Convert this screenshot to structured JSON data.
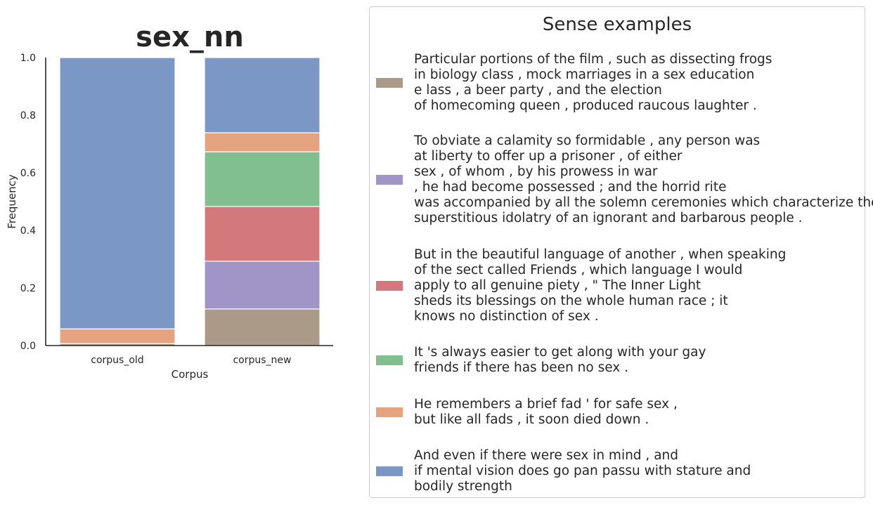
{
  "chart_data": {
    "type": "bar",
    "stacked": true,
    "title": "sex_nn",
    "xlabel": "Corpus",
    "ylabel": "Frequency",
    "ylim": [
      0,
      1.0
    ],
    "yticks": [
      "0.0",
      "0.2",
      "0.4",
      "0.6",
      "0.8",
      "1.0"
    ],
    "categories": [
      "corpus_old",
      "corpus_new"
    ],
    "series": [
      {
        "name": "Particular portions of the film , such as dissecting frogs in biology class , mock marriages in a sex education e lass , a beer party , and the election of homecoming queen , produced raucous laughter .",
        "color": "#ab9a87",
        "values": [
          0.007,
          0.127
        ]
      },
      {
        "name": "To obviate a calamity so formidable , any person was at liberty to offer up a prisoner , of either sex , of whom , by his prowess in war , he had become possessed ; and the horrid rite was accompanied by all the solemn ceremonies which characterize the superstitious idolatry of an ignorant and barbarous people .",
        "color": "#a195c7",
        "values": [
          0.0,
          0.166
        ]
      },
      {
        "name": "But in the beautiful language of another , when speaking of the sect called Friends , which language I would apply to all genuine piety , \" The Inner Light sheds its blessings on the whole human race ; it knows no distinction of sex .",
        "color": "#d3797c",
        "values": [
          0.0,
          0.19
        ]
      },
      {
        "name": "It 's always easier to get along with your gay friends if there has been no sex .",
        "color": "#81bf8f",
        "values": [
          0.0,
          0.19
        ]
      },
      {
        "name": "He remembers a brief fad ' for safe sex , but like all fads , it soon died down .",
        "color": "#e5a47f",
        "values": [
          0.051,
          0.066
        ]
      },
      {
        "name": "And even if there were sex in mind , and if mental vision does go pan passu with stature and bodily strength",
        "color": "#7a97c6",
        "values": [
          0.942,
          0.261
        ]
      }
    ],
    "legend": {
      "title": "Sense examples",
      "placement": "right",
      "entries": [
        {
          "lines": [
            "Particular portions of the film , such as dissecting frogs",
            "in biology class , mock marriages in a sex education",
            "e lass , a beer party , and the election",
            "of homecoming queen , produced raucous laughter ."
          ],
          "color": "#ab9a87"
        },
        {
          "lines": [
            "To obviate a calamity so formidable , any person was",
            "at liberty to offer up a prisoner , of either",
            "sex , of whom , by his prowess in war",
            ", he had become possessed ; and the horrid rite",
            "was accompanied by all the solemn ceremonies which characterize the",
            "superstitious idolatry of an ignorant and barbarous people ."
          ],
          "color": "#a195c7"
        },
        {
          "lines": [
            "But in the beautiful language of another , when speaking",
            "of the sect called Friends , which language I would",
            "apply to all genuine piety , \" The Inner Light",
            "sheds its blessings on the whole human race ; it",
            "knows no distinction of sex ."
          ],
          "color": "#d3797c"
        },
        {
          "lines": [
            "It 's always easier to get along with your gay",
            "friends if there has been no sex ."
          ],
          "color": "#81bf8f"
        },
        {
          "lines": [
            "He remembers a brief fad ' for safe sex ,",
            "but like all fads , it soon died down ."
          ],
          "color": "#e5a47f"
        },
        {
          "lines": [
            "And even if there were sex in mind , and",
            "if mental vision does go pan passu with stature and",
            "bodily strength"
          ],
          "color": "#7a97c6"
        }
      ]
    }
  }
}
